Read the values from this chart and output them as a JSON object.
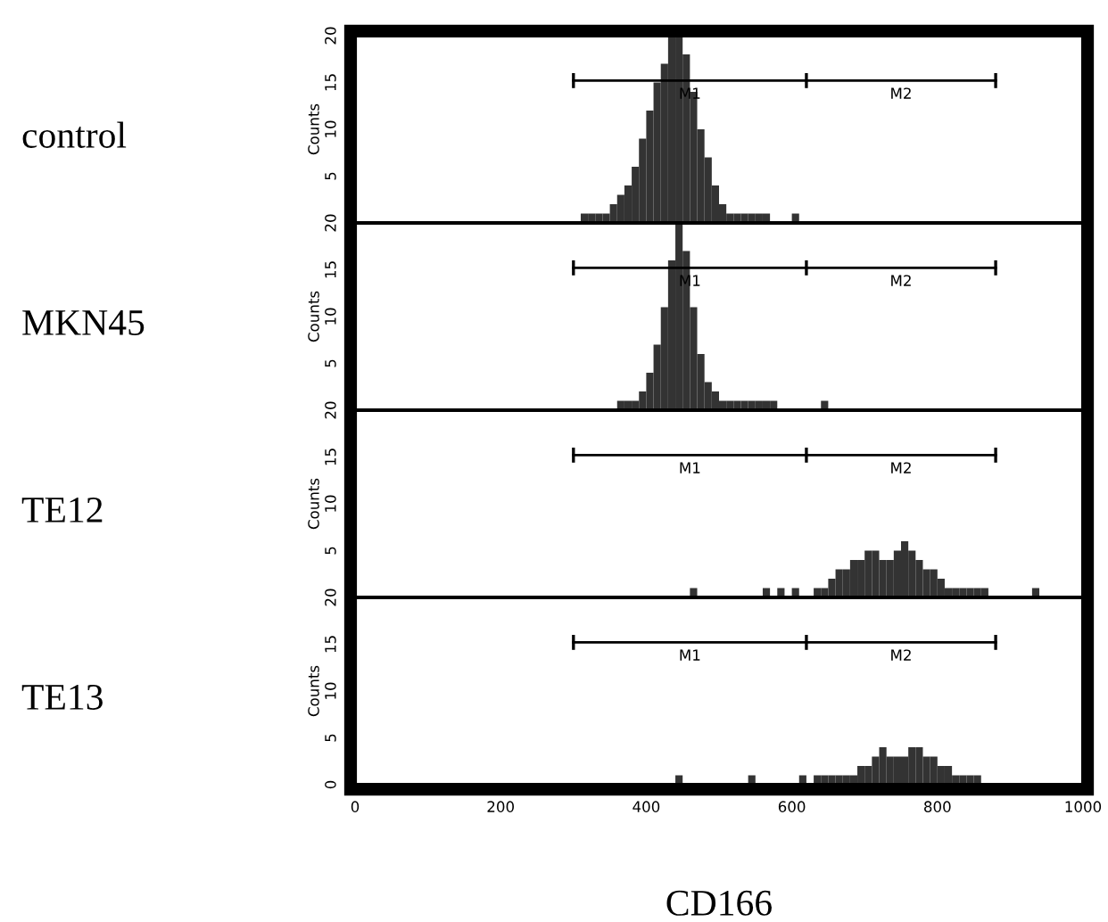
{
  "chart_data": [
    {
      "type": "histogram",
      "title": "control",
      "ylabel": "Counts",
      "xlim": [
        0,
        1000
      ],
      "ylim": [
        0,
        20
      ],
      "yticks": [
        5,
        10,
        15,
        20
      ],
      "tick_labels": "y",
      "grid": false,
      "series": [
        {
          "color": "#333333",
          "bins": [
            310,
            320,
            330,
            340,
            350,
            360,
            370,
            380,
            390,
            400,
            410,
            420,
            430,
            440,
            450,
            460,
            470,
            480,
            490,
            500,
            510,
            520,
            530,
            540,
            550,
            560,
            570,
            580,
            590,
            600,
            610
          ],
          "values": [
            1,
            1,
            1,
            1,
            2,
            3,
            4,
            6,
            9,
            12,
            15,
            17,
            20,
            20,
            18,
            14,
            10,
            7,
            4,
            2,
            1,
            1,
            1,
            1,
            1,
            1,
            0,
            0,
            0,
            1
          ]
        },
        {
          "type": "line",
          "color": "#000000",
          "x": [
            300,
            620,
            880
          ],
          "values": [
            15.2,
            15.2,
            15.2
          ],
          "errors": [
            0.8,
            0.8,
            0.8
          ]
        }
      ],
      "annotations": [
        "M1",
        "M2"
      ]
    },
    {
      "type": "histogram",
      "title": "MKN45",
      "ylabel": "Counts",
      "xlim": [
        0,
        1000
      ],
      "ylim": [
        0,
        20
      ],
      "yticks": [
        5,
        10,
        15,
        20
      ],
      "tick_labels": "y",
      "grid": false,
      "series": [
        {
          "color": "#333333",
          "bins": [
            360,
            370,
            380,
            390,
            400,
            410,
            420,
            430,
            440,
            450,
            460,
            470,
            480,
            490,
            500,
            510,
            520,
            530,
            540,
            550,
            560,
            570,
            580,
            590,
            600,
            610,
            620,
            630,
            640,
            650
          ],
          "values": [
            1,
            1,
            1,
            2,
            4,
            7,
            11,
            16,
            20,
            17,
            11,
            6,
            3,
            2,
            1,
            1,
            1,
            1,
            1,
            1,
            1,
            1,
            0,
            0,
            0,
            0,
            0,
            0,
            1
          ]
        },
        {
          "type": "line",
          "color": "#000000",
          "x": [
            300,
            620,
            880
          ],
          "values": [
            15.2,
            15.2,
            15.2
          ],
          "errors": [
            0.8,
            0.8,
            0.8
          ]
        }
      ],
      "annotations": [
        "M1",
        "M2"
      ]
    },
    {
      "type": "histogram",
      "title": "TE12",
      "ylabel": "Counts",
      "xlim": [
        0,
        1000
      ],
      "ylim": [
        0,
        20
      ],
      "yticks": [
        5,
        10,
        15,
        20
      ],
      "tick_labels": "y",
      "grid": false,
      "series": [
        {
          "color": "#333333",
          "bins": [
            460,
            470,
            480,
            490,
            500,
            510,
            520,
            530,
            540,
            550,
            560,
            570,
            580,
            590,
            600,
            610,
            620,
            630,
            640,
            650,
            660,
            670,
            680,
            690,
            700,
            710,
            720,
            730,
            740,
            750,
            760,
            770,
            780,
            790,
            800,
            810,
            820,
            830,
            840,
            850,
            860,
            870,
            880,
            890,
            900,
            910,
            920,
            930,
            940
          ],
          "values": [
            1,
            0,
            0,
            0,
            0,
            0,
            0,
            0,
            0,
            0,
            1,
            0,
            1,
            0,
            1,
            0,
            0,
            1,
            1,
            2,
            3,
            3,
            4,
            4,
            5,
            5,
            4,
            4,
            5,
            6,
            5,
            4,
            3,
            3,
            2,
            1,
            1,
            1,
            1,
            1,
            1,
            0,
            0,
            0,
            0,
            0,
            0,
            1
          ]
        },
        {
          "type": "line",
          "color": "#000000",
          "x": [
            300,
            620,
            880
          ],
          "values": [
            15.2,
            15.2,
            15.2
          ],
          "errors": [
            0.8,
            0.8,
            0.8
          ]
        }
      ],
      "annotations": [
        "M1",
        "M2"
      ]
    },
    {
      "type": "histogram",
      "title": "TE13",
      "ylabel": "Counts",
      "xlabel": "CD166",
      "xlim": [
        0,
        1000
      ],
      "ylim": [
        0,
        20
      ],
      "xticks": [
        0,
        200,
        400,
        600,
        800,
        1000
      ],
      "yticks": [
        0,
        5,
        10,
        15,
        20
      ],
      "grid": false,
      "series": [
        {
          "color": "#333333",
          "bins": [
            440,
            450,
            460,
            470,
            480,
            490,
            500,
            510,
            520,
            530,
            540,
            550,
            560,
            570,
            580,
            590,
            600,
            610,
            620,
            630,
            640,
            650,
            660,
            670,
            680,
            690,
            700,
            710,
            720,
            730,
            740,
            750,
            760,
            770,
            780,
            790,
            800,
            810,
            820,
            830,
            840,
            850,
            860
          ],
          "values": [
            1,
            0,
            0,
            0,
            0,
            0,
            0,
            0,
            0,
            0,
            1,
            0,
            0,
            0,
            0,
            0,
            0,
            1,
            0,
            1,
            1,
            1,
            1,
            1,
            1,
            2,
            2,
            3,
            4,
            3,
            3,
            3,
            4,
            4,
            3,
            3,
            2,
            2,
            1,
            1,
            1,
            1
          ]
        },
        {
          "type": "line",
          "color": "#000000",
          "x": [
            300,
            620,
            880
          ],
          "values": [
            15.2,
            15.2,
            15.2
          ],
          "errors": [
            0.8,
            0.8,
            0.8
          ]
        }
      ],
      "annotations": [
        "M1",
        "M2"
      ]
    }
  ]
}
